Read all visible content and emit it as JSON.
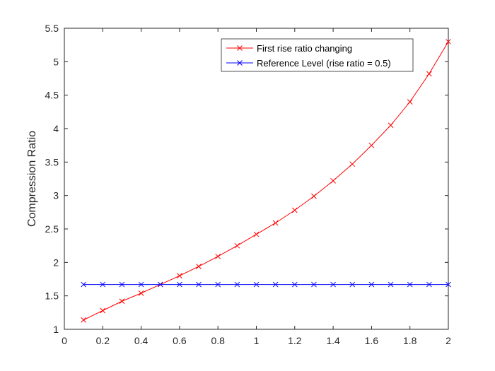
{
  "chart_data": {
    "type": "line",
    "title": "",
    "xlabel": "",
    "ylabel": "Compression Ratio",
    "xlim": [
      0,
      2
    ],
    "ylim": [
      1,
      5.5
    ],
    "x_ticks": [
      "0",
      "0.2",
      "0.4",
      "0.6",
      "0.8",
      "1",
      "1.2",
      "1.4",
      "1.6",
      "1.8",
      "2"
    ],
    "y_ticks": [
      "1",
      "1.5",
      "2",
      "2.5",
      "3",
      "3.5",
      "4",
      "4.5",
      "5",
      "5.5"
    ],
    "grid": false,
    "legend_position": "top-right",
    "x": [
      0.1,
      0.2,
      0.3,
      0.4,
      0.5,
      0.6,
      0.7,
      0.8,
      0.9,
      1.0,
      1.1,
      1.2,
      1.3,
      1.4,
      1.5,
      1.6,
      1.7,
      1.8,
      1.9,
      2.0
    ],
    "series": [
      {
        "name": "First rise ratio changing",
        "color": "#ff0000",
        "marker": "x",
        "values": [
          1.14,
          1.28,
          1.42,
          1.54,
          1.67,
          1.8,
          1.94,
          2.09,
          2.25,
          2.42,
          2.59,
          2.78,
          2.99,
          3.22,
          3.47,
          3.75,
          4.05,
          4.4,
          4.82,
          5.3
        ]
      },
      {
        "name": "Reference Level (rise ratio = 0.5)",
        "color": "#0000ff",
        "marker": "x",
        "values": [
          1.67,
          1.67,
          1.67,
          1.67,
          1.67,
          1.67,
          1.67,
          1.67,
          1.67,
          1.67,
          1.67,
          1.67,
          1.67,
          1.67,
          1.67,
          1.67,
          1.67,
          1.67,
          1.67,
          1.67
        ]
      }
    ]
  }
}
